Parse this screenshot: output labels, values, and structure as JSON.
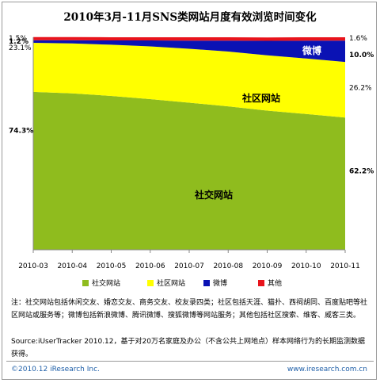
{
  "title": "2010年3月-11月SNS类网站月度有效浏览时间变化",
  "chart_data": {
    "type": "area",
    "stacked": true,
    "percent": true,
    "categories": [
      "2010-03",
      "2010-04",
      "2010-05",
      "2010-06",
      "2010-07",
      "2010-08",
      "2010-09",
      "2010-10",
      "2010-11"
    ],
    "series": [
      {
        "name": "社交网站",
        "color": "#8fbc1e",
        "values": [
          74.3,
          73.6,
          72.4,
          70.9,
          69.2,
          67.5,
          65.5,
          63.9,
          62.2
        ]
      },
      {
        "name": "社区网站",
        "color": "#ffff00",
        "values": [
          23.1,
          23.5,
          24.1,
          24.8,
          25.4,
          25.8,
          26.0,
          26.1,
          26.2
        ]
      },
      {
        "name": "微博",
        "color": "#0a12b4",
        "values": [
          1.2,
          1.5,
          2.0,
          2.8,
          3.8,
          5.1,
          6.8,
          8.4,
          10.0
        ]
      },
      {
        "name": "其他",
        "color": "#e8141c",
        "values": [
          1.5,
          1.5,
          1.5,
          1.5,
          1.6,
          1.6,
          1.6,
          1.6,
          1.6
        ]
      }
    ],
    "ylim": [
      0,
      100
    ],
    "area_labels": [
      "社交网站",
      "社区网站",
      "微博"
    ],
    "left_labels": [
      "1.5%",
      "1.2%",
      "23.1%",
      "74.3%"
    ],
    "right_labels": [
      "1.6%",
      "10.0%",
      "26.2%",
      "62.2%"
    ]
  },
  "note": "注：社交网站包括休闲交友、婚恋交友、商务交友、校友录四类；社区包括天涯、猫扑、西祠胡同、百度贴吧等社区网站或服务等；微博包括新浪微博、腾讯微博、搜狐微博等网站服务；其他包括社区搜索、维客、威客三类。",
  "source": "Source:iUserTracker 2010.12，基于对20万名家庭及办公（不含公共上网地点）样本网络行为的长期监测数据获得。",
  "footer": {
    "copyright": "©2010.12 iResearch Inc.",
    "url": "www.iresearch.com.cn"
  }
}
